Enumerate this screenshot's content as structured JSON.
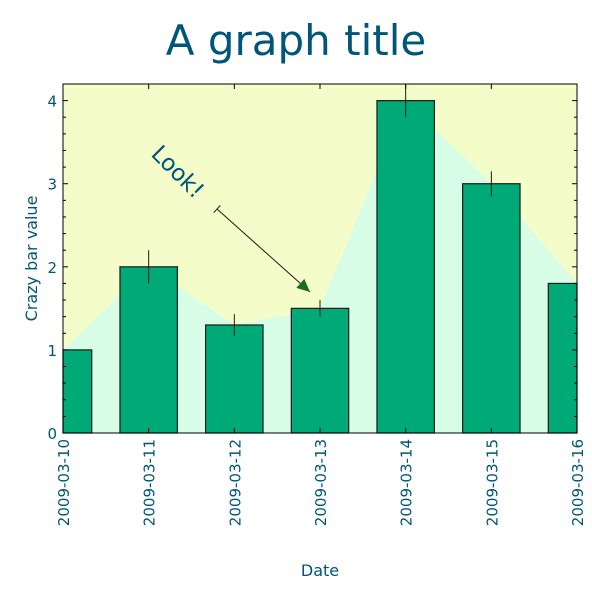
{
  "chart_data": {
    "type": "bar",
    "title": "A graph title",
    "xlabel": "Date",
    "ylabel": "Crazy bar value",
    "categories": [
      "2009-03-10",
      "2009-03-11",
      "2009-03-12",
      "2009-03-13",
      "2009-03-14",
      "2009-03-15",
      "2009-03-16"
    ],
    "values": [
      1.0,
      2.0,
      1.3,
      1.5,
      4.0,
      3.0,
      1.8
    ],
    "errors": [
      0.0,
      0.2,
      0.13,
      0.1,
      0.2,
      0.15,
      0.1
    ],
    "yticks": [
      "0",
      "1",
      "2",
      "3",
      "4"
    ],
    "ylim": [
      0,
      4.2
    ],
    "grid": false,
    "annotation": {
      "text": "Look!",
      "target_category": "2009-03-13",
      "target_value": 1.6
    },
    "colors": {
      "bar": "#00aa77",
      "bar_edge": "#1a1a1a",
      "plot_bg": "#f4fdca",
      "area": "#d8fde6",
      "text": "#00557a"
    }
  }
}
